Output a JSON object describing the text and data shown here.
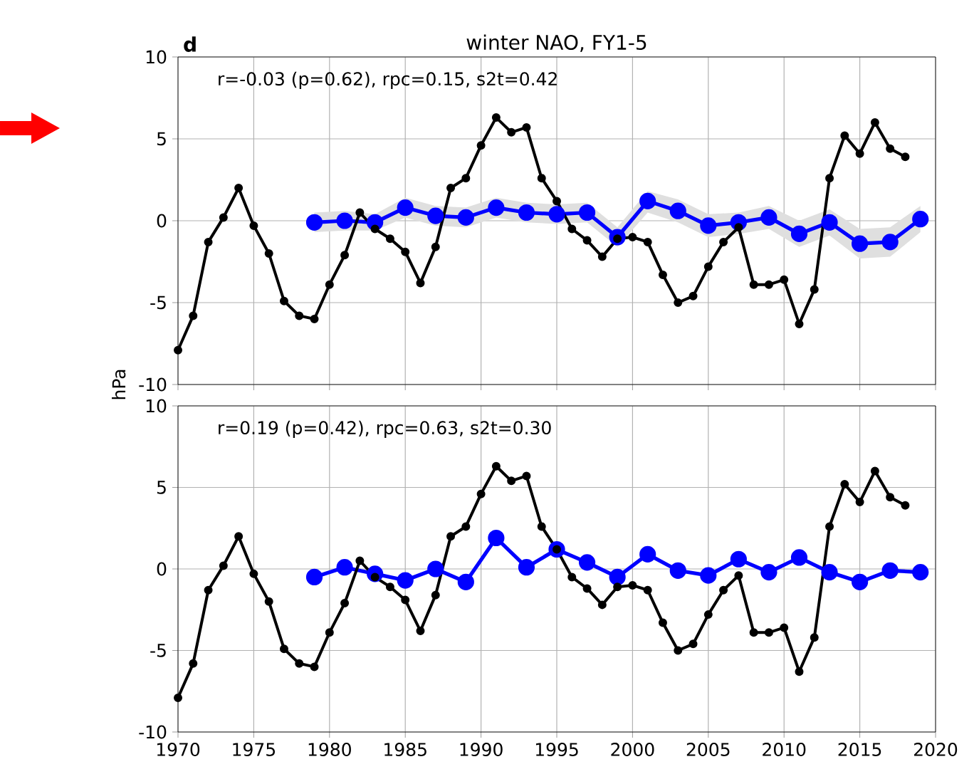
{
  "chart_data": [
    {
      "type": "line",
      "title": "winter NAO, FY1-5",
      "ylabel": "hPa",
      "annotations": [
        "d",
        "r=-0.03 (p=0.62), rpc=0.15, s2t=0.42"
      ],
      "xlim": [
        1970,
        2020
      ],
      "xticks": [
        1970,
        1975,
        1980,
        1985,
        1990,
        1995,
        2000,
        2005,
        2010,
        2015,
        2020
      ],
      "ylim": [
        -10,
        10
      ],
      "yticks": [
        -10,
        -5,
        0,
        5,
        10
      ],
      "grid": true,
      "marker": "circle",
      "tick_labels": "y",
      "series": [
        {
          "color": "#000000",
          "x": [
            1970,
            1971,
            1972,
            1973,
            1974,
            1975,
            1976,
            1977,
            1978,
            1979,
            1980,
            1981,
            1982,
            1983,
            1984,
            1985,
            1986,
            1987,
            1988,
            1989,
            1990,
            1991,
            1992,
            1993,
            1994,
            1995,
            1996,
            1997,
            1998,
            1999,
            2000,
            2001,
            2002,
            2003,
            2004,
            2005,
            2006,
            2007,
            2008,
            2009,
            2010,
            2011,
            2012,
            2013,
            2014,
            2015,
            2016,
            2017,
            2018
          ],
          "values": [
            -7.9,
            -5.8,
            -1.3,
            0.2,
            2.0,
            -0.3,
            -2.0,
            -4.9,
            -5.8,
            -6.0,
            -3.9,
            -2.1,
            0.5,
            -0.5,
            -1.1,
            -1.9,
            -3.8,
            -1.6,
            2.0,
            2.6,
            4.6,
            6.3,
            5.4,
            5.7,
            2.6,
            1.2,
            -0.5,
            -1.2,
            -2.2,
            -1.1,
            -1.0,
            -1.3,
            -3.3,
            -5.0,
            -4.6,
            -2.8,
            -1.3,
            -0.4,
            -3.9,
            -3.9,
            -3.6,
            -6.3,
            -4.2,
            2.6,
            5.2,
            4.1,
            6.0,
            4.4,
            3.9
          ]
        },
        {
          "color": "#0000ff",
          "x": [
            1979,
            1981,
            1983,
            1985,
            1987,
            1989,
            1991,
            1993,
            1995,
            1997,
            1999,
            2001,
            2003,
            2005,
            2007,
            2009,
            2011,
            2013,
            2015,
            2017,
            2019
          ],
          "values": [
            -0.1,
            0.0,
            -0.1,
            0.8,
            0.3,
            0.2,
            0.8,
            0.5,
            0.4,
            0.5,
            -1.0,
            1.2,
            0.6,
            -0.3,
            -0.1,
            0.2,
            -0.8,
            -0.1,
            -1.4,
            -1.3,
            0.1
          ],
          "lower": [
            -0.7,
            -0.6,
            -0.6,
            0.2,
            -0.3,
            -0.4,
            0.2,
            -0.1,
            -0.2,
            -0.1,
            -1.6,
            0.5,
            -0.1,
            -1.0,
            -0.8,
            -0.5,
            -1.6,
            -0.9,
            -2.3,
            -2.2,
            -0.7
          ],
          "upper": [
            0.5,
            0.6,
            0.4,
            1.4,
            0.9,
            0.8,
            1.4,
            1.1,
            1.0,
            1.1,
            -0.4,
            1.8,
            1.3,
            0.4,
            0.5,
            0.9,
            0.0,
            0.7,
            -0.5,
            -0.4,
            0.9
          ]
        }
      ]
    },
    {
      "type": "line",
      "annotations": [
        "r=0.19 (p=0.42), rpc=0.63, s2t=0.30"
      ],
      "xlim": [
        1970,
        2020
      ],
      "xticks": [
        1970,
        1975,
        1980,
        1985,
        1990,
        1995,
        2000,
        2005,
        2010,
        2015,
        2020
      ],
      "ylim": [
        -10,
        10
      ],
      "yticks": [
        -10,
        -5,
        0,
        5,
        10
      ],
      "grid": true,
      "marker": "circle",
      "series": [
        {
          "color": "#000000",
          "x": [
            1970,
            1971,
            1972,
            1973,
            1974,
            1975,
            1976,
            1977,
            1978,
            1979,
            1980,
            1981,
            1982,
            1983,
            1984,
            1985,
            1986,
            1987,
            1988,
            1989,
            1990,
            1991,
            1992,
            1993,
            1994,
            1995,
            1996,
            1997,
            1998,
            1999,
            2000,
            2001,
            2002,
            2003,
            2004,
            2005,
            2006,
            2007,
            2008,
            2009,
            2010,
            2011,
            2012,
            2013,
            2014,
            2015,
            2016,
            2017,
            2018
          ],
          "values": [
            -7.9,
            -5.8,
            -1.3,
            0.2,
            2.0,
            -0.3,
            -2.0,
            -4.9,
            -5.8,
            -6.0,
            -3.9,
            -2.1,
            0.5,
            -0.5,
            -1.1,
            -1.9,
            -3.8,
            -1.6,
            2.0,
            2.6,
            4.6,
            6.3,
            5.4,
            5.7,
            2.6,
            1.2,
            -0.5,
            -1.2,
            -2.2,
            -1.1,
            -1.0,
            -1.3,
            -3.3,
            -5.0,
            -4.6,
            -2.8,
            -1.3,
            -0.4,
            -3.9,
            -3.9,
            -3.6,
            -6.3,
            -4.2,
            2.6,
            5.2,
            4.1,
            6.0,
            4.4,
            3.9
          ]
        },
        {
          "color": "#0000ff",
          "x": [
            1979,
            1981,
            1983,
            1985,
            1987,
            1989,
            1991,
            1993,
            1995,
            1997,
            1999,
            2001,
            2003,
            2005,
            2007,
            2009,
            2011,
            2013,
            2015,
            2017,
            2019
          ],
          "values": [
            -0.5,
            0.1,
            -0.3,
            -0.7,
            0.0,
            -0.8,
            1.9,
            0.1,
            1.2,
            0.4,
            -0.5,
            0.9,
            -0.1,
            -0.4,
            0.6,
            -0.2,
            0.7,
            -0.2,
            -0.8,
            -0.1,
            -0.2
          ]
        }
      ]
    }
  ]
}
